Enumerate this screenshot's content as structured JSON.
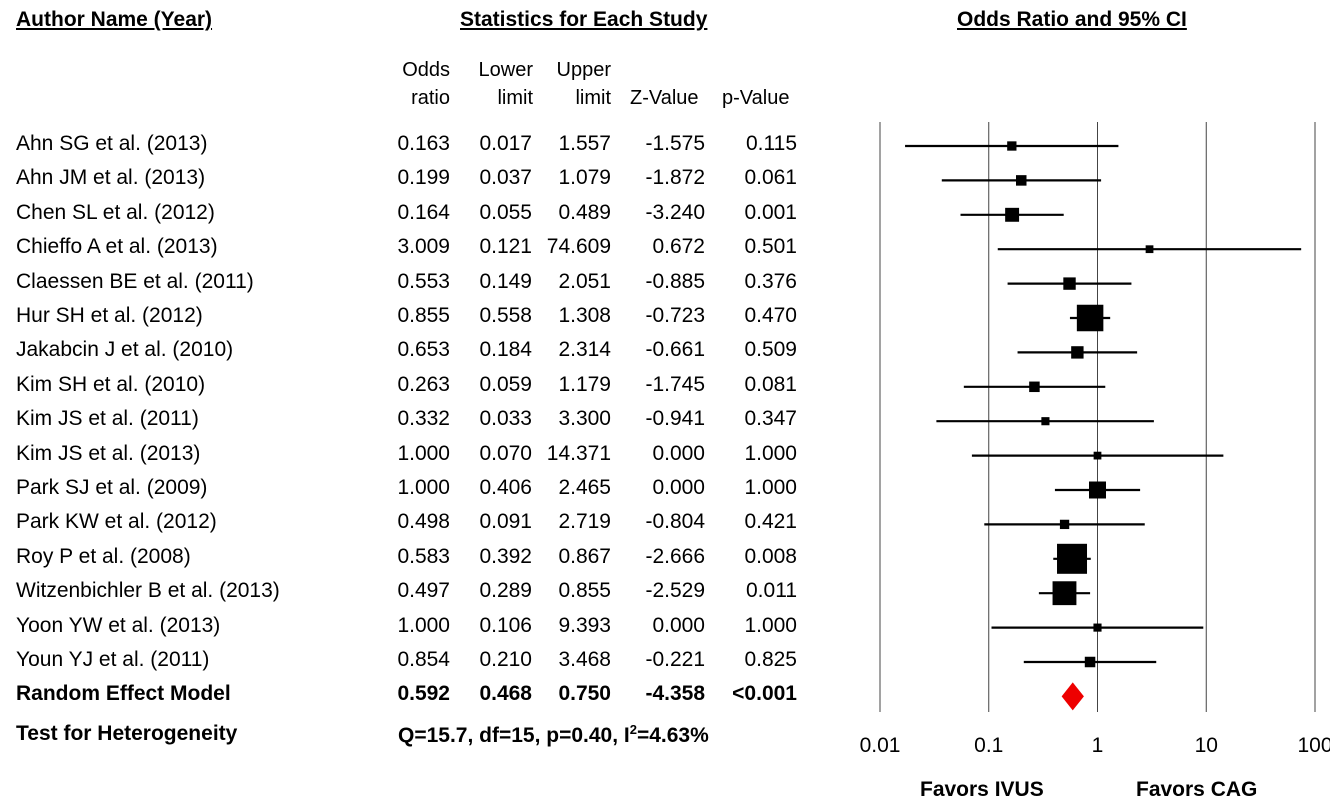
{
  "headers": {
    "author": "Author Name (Year)",
    "stats": "Statistics for Each Study",
    "plot": "Odds Ratio and 95% CI"
  },
  "columns": {
    "or_line1": "Odds",
    "or_line2": "ratio",
    "lower_line1": "Lower",
    "lower_line2": "limit",
    "upper_line1": "Upper",
    "upper_line2": "limit",
    "z": "Z-Value",
    "p": "p-Value"
  },
  "chart_data": {
    "type": "forest",
    "x_scale": "log",
    "xlim": [
      0.01,
      100
    ],
    "x_ticks": [
      "0.01",
      "0.1",
      "1",
      "10",
      "100"
    ],
    "reference_line": 1,
    "grid": "vertical lines at each tick",
    "studies": [
      {
        "name": "Ahn SG et al. (2013)",
        "or": "0.163",
        "lower": "0.017",
        "upper": "1.557",
        "z": "-1.575",
        "p": "0.115",
        "weight": 1
      },
      {
        "name": "Ahn JM et al. (2013)",
        "or": "0.199",
        "lower": "0.037",
        "upper": "1.079",
        "z": "-1.872",
        "p": "0.061",
        "weight": 1.5
      },
      {
        "name": "Chen SL et al. (2012)",
        "or": "0.164",
        "lower": "0.055",
        "upper": "0.489",
        "z": "-3.240",
        "p": "0.001",
        "weight": 3.5
      },
      {
        "name": "Chieffo A et al. (2013)",
        "or": "3.009",
        "lower": "0.121",
        "upper": "74.609",
        "z": "0.672",
        "p": "0.501",
        "weight": 0.5
      },
      {
        "name": "Claessen BE et al. (2011)",
        "or": "0.553",
        "lower": "0.149",
        "upper": "2.051",
        "z": "-0.885",
        "p": "0.376",
        "weight": 2.5
      },
      {
        "name": "Hur SH et al. (2012)",
        "or": "0.855",
        "lower": "0.558",
        "upper": "1.308",
        "z": "-0.723",
        "p": "0.470",
        "weight": 18
      },
      {
        "name": "Jakabcin J et al. (2010)",
        "or": "0.653",
        "lower": "0.184",
        "upper": "2.314",
        "z": "-0.661",
        "p": "0.509",
        "weight": 2.5
      },
      {
        "name": "Kim SH et al. (2010)",
        "or": "0.263",
        "lower": "0.059",
        "upper": "1.179",
        "z": "-1.745",
        "p": "0.081",
        "weight": 1.5
      },
      {
        "name": "Kim JS et al. (2011)",
        "or": "0.332",
        "lower": "0.033",
        "upper": "3.300",
        "z": "-0.941",
        "p": "0.347",
        "weight": 0.6
      },
      {
        "name": "Kim JS et al. (2013)",
        "or": "1.000",
        "lower": "0.070",
        "upper": "14.371",
        "z": "0.000",
        "p": "1.000",
        "weight": 0.5
      },
      {
        "name": "Park SJ et al. (2009)",
        "or": "1.000",
        "lower": "0.406",
        "upper": "2.465",
        "z": "0.000",
        "p": "1.000",
        "weight": 6
      },
      {
        "name": "Park KW et al. (2012)",
        "or": "0.498",
        "lower": "0.091",
        "upper": "2.719",
        "z": "-0.804",
        "p": "0.421",
        "weight": 1
      },
      {
        "name": "Roy P et al. (2008)",
        "or": "0.583",
        "lower": "0.392",
        "upper": "0.867",
        "z": "-2.666",
        "p": "0.008",
        "weight": 24
      },
      {
        "name": "Witzenbichler B et al. (2013)",
        "or": "0.497",
        "lower": "0.289",
        "upper": "0.855",
        "z": "-2.529",
        "p": "0.011",
        "weight": 14
      },
      {
        "name": "Yoon YW et al. (2013)",
        "or": "1.000",
        "lower": "0.106",
        "upper": "9.393",
        "z": "0.000",
        "p": "1.000",
        "weight": 0.6
      },
      {
        "name": "Youn YJ et al. (2011)",
        "or": "0.854",
        "lower": "0.210",
        "upper": "3.468",
        "z": "-0.221",
        "p": "0.825",
        "weight": 1.5
      }
    ],
    "pooled": {
      "name": "Random Effect Model",
      "or": "0.592",
      "lower": "0.468",
      "upper": "0.750",
      "z": "-4.358",
      "p": "<0.001"
    },
    "heterogeneity": {
      "label": "Test for Heterogeneity",
      "q": "Q=15.7, df=15, p=0.40, I",
      "sup": "2",
      "i2": "=4.63%"
    },
    "favors_left": "Favors IVUS",
    "favors_right": "Favors CAG",
    "colors": {
      "marker": "#000000",
      "pooled": "#ee0000",
      "grid": "#444444"
    }
  }
}
